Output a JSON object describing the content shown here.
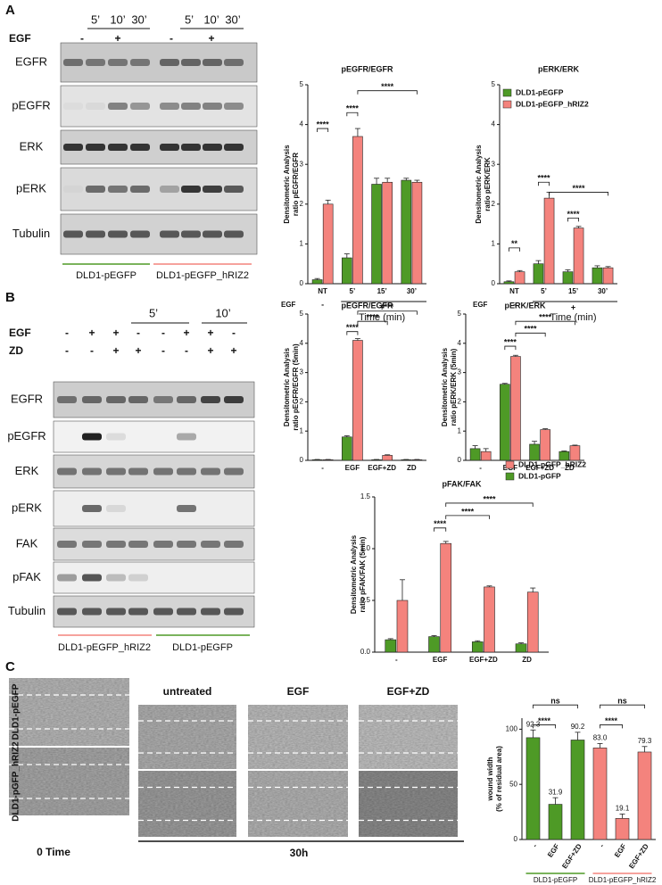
{
  "panel_labels": [
    "A",
    "B",
    "C"
  ],
  "blot_a": {
    "treatment_label": "EGF",
    "treatment": [
      "-",
      "+",
      "-",
      "+"
    ],
    "times": [
      "5’",
      "10’",
      "30’",
      "5’",
      "10’",
      "30’"
    ],
    "rows": [
      "EGFR",
      "pEGFR",
      "ERK",
      "pERK",
      "Tubulin"
    ],
    "groups": [
      "DLD1-pEGFP",
      "DLD1-pEGFP_hRIZ2"
    ]
  },
  "blot_b": {
    "times": [
      "5’",
      "10’"
    ],
    "treatments": [
      {
        "label": "EGF",
        "values": [
          "-",
          "+",
          "+",
          "-",
          "-",
          "+",
          "+",
          "-"
        ]
      },
      {
        "label": "ZD",
        "values": [
          "-",
          "-",
          "+",
          "+",
          "-",
          "-",
          "+",
          "+"
        ]
      }
    ],
    "rows": [
      "EGFR",
      "pEGFR",
      "ERK",
      "pERK",
      "FAK",
      "pFAK",
      "Tubulin"
    ],
    "groups": [
      "DLD1-pEGFP_hRIZ2",
      "DLD1-pEGFP"
    ]
  },
  "wound_c": {
    "columns": [
      "untreated",
      "EGF",
      "EGF+ZD"
    ],
    "rows": [
      "DLD1-pEGFP",
      "DLD1-pGFP_hRIZ2"
    ],
    "time_labels": [
      "0 Time",
      "30h"
    ]
  },
  "chart_data": [
    {
      "type": "bar",
      "title": "pEGFR/EGFR",
      "ylabel": [
        "Densitometric Analysis",
        "ratio pEGFR/EGFR"
      ],
      "categories": [
        "NT",
        "5’",
        "15’",
        "30’"
      ],
      "series": [
        {
          "color": "#4e9a26",
          "values": [
            0.1,
            0.65,
            2.5,
            2.6
          ],
          "errors": [
            0.03,
            0.1,
            0.15,
            0.05
          ]
        },
        {
          "color": "#f4837d",
          "values": [
            2.0,
            3.7,
            2.55,
            2.55
          ],
          "errors": [
            0.1,
            0.2,
            0.1,
            0.05
          ]
        }
      ],
      "ylim": [
        0,
        5
      ],
      "yticks": [
        0,
        1,
        2,
        3,
        4,
        5
      ],
      "treatment": {
        "label": "EGF",
        "values": [
          "-",
          "+"
        ]
      },
      "xlabel": "Time (min)",
      "annotations": [
        "****",
        "****",
        "****"
      ]
    },
    {
      "type": "bar",
      "title": "pERK/ERK",
      "ylabel": [
        "Densitometric Analysis",
        "ratio pERK/ERK"
      ],
      "categories": [
        "NT",
        "5’",
        "15’",
        "30’"
      ],
      "series": [
        {
          "name": "DLD1-pEGFP",
          "color": "#4e9a26",
          "values": [
            0.05,
            0.5,
            0.3,
            0.4
          ],
          "errors": [
            0.02,
            0.08,
            0.05,
            0.05
          ]
        },
        {
          "name": "DLD1-pEGFP_hRIZ2",
          "color": "#f4837d",
          "values": [
            0.3,
            2.15,
            1.4,
            0.4
          ],
          "errors": [
            0.03,
            0.15,
            0.04,
            0.03
          ]
        }
      ],
      "ylim": [
        0,
        5
      ],
      "yticks": [
        0,
        1,
        2,
        3,
        4,
        5
      ],
      "treatment": {
        "label": "EGF",
        "values": [
          "-",
          "+"
        ]
      },
      "xlabel": "Time (min)",
      "annotations": [
        "**",
        "****",
        "****",
        "****"
      ]
    },
    {
      "type": "bar",
      "title": "pEGFR/EGFR",
      "ylabel": [
        "Densitometric Analysis",
        "ratio pEGFR/EGFR (5min)"
      ],
      "categories": [
        "-",
        "EGF",
        "EGF+ZD",
        "ZD"
      ],
      "series": [
        {
          "color": "#4e9a26",
          "values": [
            0.02,
            0.8,
            0.02,
            0.02
          ],
          "errors": [
            0.01,
            0.04,
            0.01,
            0.01
          ]
        },
        {
          "color": "#f4837d",
          "values": [
            0.02,
            4.1,
            0.17,
            0.02
          ],
          "errors": [
            0.01,
            0.06,
            0.02,
            0.01
          ]
        }
      ],
      "ylim": [
        0,
        5
      ],
      "yticks": [
        0,
        1,
        2,
        3,
        4,
        5
      ],
      "annotations": [
        "****",
        "****",
        "****"
      ]
    },
    {
      "type": "bar",
      "title": "pERK/ERK",
      "ylabel": [
        "Densitometric Analysis",
        "ratio pERK/ERK (5min)"
      ],
      "categories": [
        "-",
        "EGF",
        "EGF+ZD",
        "ZD"
      ],
      "series": [
        {
          "color": "#4e9a26",
          "values": [
            0.4,
            2.6,
            0.55,
            0.3
          ],
          "errors": [
            0.1,
            0.03,
            0.1,
            0.02
          ]
        },
        {
          "color": "#f4837d",
          "values": [
            0.3,
            3.55,
            1.05,
            0.5
          ],
          "errors": [
            0.1,
            0.04,
            0.03,
            0.02
          ]
        }
      ],
      "ylim": [
        0,
        5
      ],
      "yticks": [
        0,
        1,
        2,
        3,
        4,
        5
      ],
      "annotations": [
        "****",
        "****",
        "****"
      ]
    },
    {
      "type": "bar",
      "title": "pFAK/FAK",
      "ylabel": [
        "Densitometric Analysis",
        "ratio pFAK/FAK (5min)"
      ],
      "categories": [
        "-",
        "EGF",
        "EGF+ZD",
        "ZD"
      ],
      "series": [
        {
          "name": "DLD1-pGFP",
          "color": "#4e9a26",
          "values": [
            0.12,
            0.15,
            0.1,
            0.08
          ],
          "errors": [
            0.01,
            0.01,
            0.01,
            0.01
          ]
        },
        {
          "name": "DLD1-pGFP_hRIZ2",
          "color": "#f4837d",
          "values": [
            0.5,
            1.05,
            0.63,
            0.58
          ],
          "errors": [
            0.2,
            0.02,
            0.01,
            0.04
          ]
        }
      ],
      "legend_order": [
        1,
        0
      ],
      "ylim": [
        0,
        1.5
      ],
      "yticks": [
        {
          "value": 0,
          "label": "0.0"
        },
        0.5,
        {
          "value": 1,
          "label": "1.0"
        },
        1.5
      ],
      "annotations": [
        "****",
        "****",
        "****"
      ]
    },
    {
      "type": "bar",
      "ylabel": [
        "wound width",
        "(% of residual area)"
      ],
      "categories": [
        "-",
        "EGF",
        "EGF+ZD",
        "-",
        "EGF",
        "EGF+ZD"
      ],
      "values": [
        92.3,
        31.9,
        90.2,
        83.0,
        19.1,
        79.3
      ],
      "value_labels": [
        "92.3",
        "31.9",
        "90.2",
        "83.0",
        "19.1",
        "79.3"
      ],
      "errors": [
        7,
        6,
        7,
        4,
        4,
        5
      ],
      "colors": [
        "#4e9a26",
        "#4e9a26",
        "#4e9a26",
        "#f4837d",
        "#f4837d",
        "#f4837d"
      ],
      "groups": [
        "DLD1-pEGFP",
        "DLD1-pEGFP_hRIZ2"
      ],
      "ylim": [
        0,
        110
      ],
      "yticks": [
        0,
        50,
        100
      ],
      "annotations": [
        "****",
        "ns",
        "****",
        "ns"
      ]
    }
  ]
}
